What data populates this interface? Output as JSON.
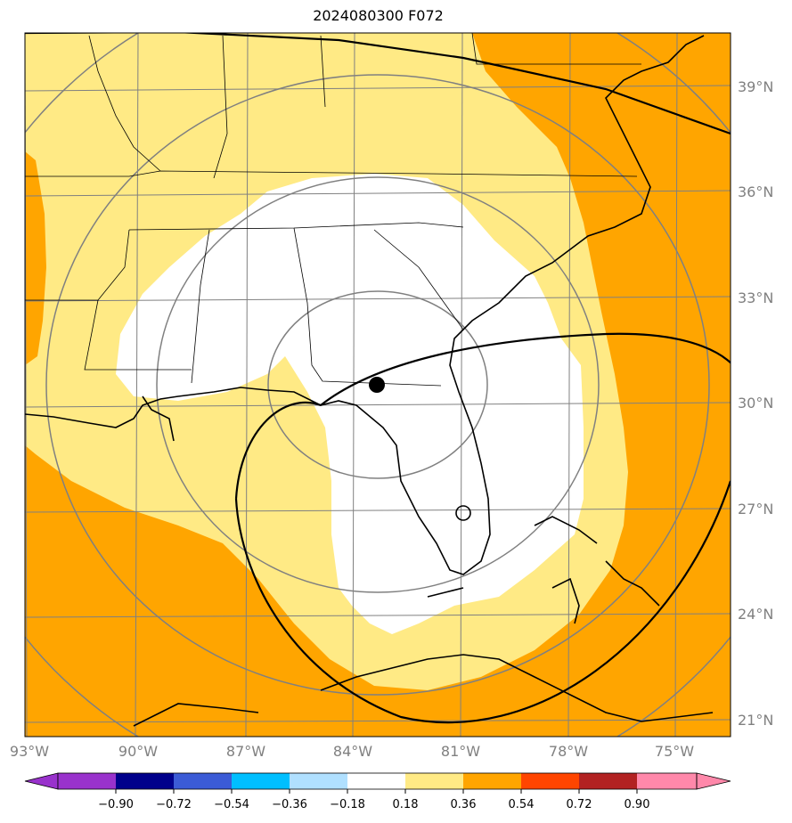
{
  "title": "2024080300 F072",
  "latitude_labels": [
    "39°N",
    "36°N",
    "33°N",
    "30°N",
    "27°N",
    "24°N",
    "21°N"
  ],
  "longitude_labels": [
    "93°W",
    "90°W",
    "87°W",
    "84°W",
    "81°W",
    "78°W",
    "75°W"
  ],
  "colorbar": {
    "tick_labels": [
      "−0.90",
      "−0.72",
      "−0.54",
      "−0.36",
      "−0.18",
      "0.18",
      "0.36",
      "0.54",
      "0.72",
      "0.90"
    ],
    "bins": [
      {
        "color": "#9932cc"
      },
      {
        "color": "#00008b"
      },
      {
        "color": "#3b5bd6"
      },
      {
        "color": "#00bfff"
      },
      {
        "color": "#b0e0ff"
      },
      {
        "color": "#ffffff"
      },
      {
        "color": "#ffea85"
      },
      {
        "color": "#ffa500"
      },
      {
        "color": "#ff4500"
      },
      {
        "color": "#b22222"
      },
      {
        "color": "#ff88aa"
      }
    ]
  },
  "colors": {
    "background_field": "#ffa500",
    "mid_field": "#ffea85",
    "low_field": "#ffffff",
    "grid": "#808080",
    "coast": "#000000"
  },
  "marker": {
    "shape": "filled-circle",
    "color": "#000000"
  }
}
